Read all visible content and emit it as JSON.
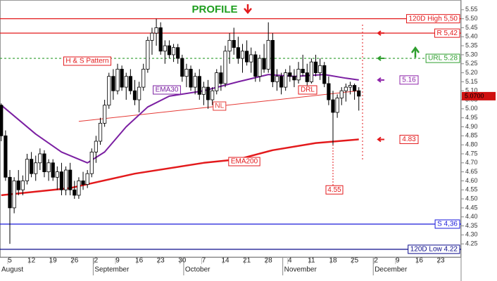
{
  "chart_data": {
    "type": "candlestick",
    "title": "PROFILE",
    "categories": [
      null,
      null,
      "5",
      null,
      null,
      null,
      null,
      "12",
      null,
      null,
      null,
      null,
      "19",
      null,
      null,
      null,
      null,
      "26",
      null,
      null,
      null,
      null,
      "2",
      null,
      null,
      null,
      null,
      "9",
      null,
      null,
      null,
      null,
      "16",
      null,
      null,
      null,
      null,
      "23",
      null,
      null,
      null,
      null,
      "30",
      null,
      null,
      null,
      null,
      "7",
      null,
      null,
      null,
      null,
      "14",
      null,
      null,
      null,
      null,
      "21",
      null,
      null,
      null,
      null,
      "28",
      null,
      null,
      null,
      null,
      "4",
      null,
      null,
      null,
      null,
      "11",
      null,
      null,
      null,
      null,
      "18",
      null,
      null,
      null,
      null,
      "25",
      null,
      null,
      null,
      null,
      "2",
      null,
      null,
      null,
      null,
      "9",
      null,
      null,
      null,
      null,
      "16",
      null,
      null,
      null,
      null,
      "23",
      null,
      null,
      null,
      null
    ],
    "months": [
      "August",
      null,
      null,
      null,
      null,
      null,
      null,
      null,
      null,
      null,
      null,
      null,
      null,
      null,
      null,
      null,
      null,
      null,
      null,
      null,
      null,
      null,
      "September",
      null,
      null,
      null,
      null,
      null,
      null,
      null,
      null,
      null,
      null,
      null,
      null,
      null,
      null,
      null,
      null,
      null,
      null,
      null,
      null,
      "October",
      null,
      null,
      null,
      null,
      null,
      null,
      null,
      null,
      null,
      null,
      null,
      null,
      null,
      null,
      null,
      null,
      null,
      null,
      null,
      null,
      null,
      null,
      "November",
      null,
      null,
      null,
      null,
      null,
      null,
      null,
      null,
      null,
      null,
      null,
      null,
      null,
      null,
      null,
      null,
      null,
      null,
      null,
      null,
      "December",
      null,
      null,
      null,
      null,
      null,
      null,
      null,
      null,
      null,
      null,
      null,
      null,
      null,
      null,
      null,
      null,
      null,
      null,
      null
    ],
    "open": [
      5.02,
      4.85,
      4.62,
      4.45,
      4.6,
      4.55,
      4.6,
      4.72,
      4.64,
      4.7,
      4.75,
      4.65,
      4.7,
      4.62,
      4.65,
      4.55,
      4.66,
      4.55,
      4.52,
      4.6,
      4.58,
      4.64,
      4.76,
      4.82,
      4.92,
      5.02,
      5.18,
      5.1,
      5.22,
      5.12,
      5.18,
      5.1,
      5.05,
      5.12,
      5.22,
      5.38,
      5.42,
      5.45,
      5.32,
      5.35,
      5.3,
      5.34,
      5.28,
      5.18,
      5.22,
      5.12,
      5.18,
      5.08,
      5.12,
      5.05,
      5.1,
      5.2,
      5.14,
      5.32,
      5.38,
      5.34,
      5.28,
      5.32,
      5.26,
      5.3,
      5.18,
      5.28,
      5.22,
      5.38,
      5.15,
      5.18,
      5.12,
      5.2,
      5.18,
      5.16,
      5.22,
      5.2,
      5.15,
      5.26,
      5.2,
      5.24,
      5.14,
      5.05,
      4.98,
      5.06,
      5.1,
      5.12,
      5.13,
      5.1,
      null,
      null,
      null,
      null,
      null,
      null,
      null,
      null,
      null,
      null,
      null,
      null,
      null,
      null,
      null,
      null,
      null,
      null,
      null,
      null,
      null,
      null,
      null
    ],
    "high": [
      5.03,
      4.88,
      4.66,
      4.62,
      4.66,
      4.63,
      4.75,
      4.76,
      4.74,
      4.78,
      4.77,
      4.72,
      4.72,
      4.68,
      4.7,
      4.68,
      4.7,
      4.6,
      4.62,
      4.65,
      4.66,
      4.78,
      4.85,
      4.95,
      5.05,
      5.2,
      5.22,
      5.25,
      5.24,
      5.2,
      5.22,
      5.16,
      5.15,
      5.25,
      5.4,
      5.45,
      5.5,
      5.48,
      5.38,
      5.38,
      5.36,
      5.36,
      5.3,
      5.25,
      5.24,
      5.2,
      5.22,
      5.15,
      5.16,
      5.12,
      5.22,
      5.24,
      5.35,
      5.42,
      5.45,
      5.4,
      5.36,
      5.38,
      5.34,
      5.32,
      5.3,
      5.36,
      5.48,
      5.42,
      5.22,
      5.2,
      5.22,
      5.24,
      5.22,
      5.26,
      5.3,
      5.25,
      5.28,
      5.3,
      5.28,
      5.26,
      5.18,
      5.1,
      5.08,
      5.12,
      5.14,
      5.15,
      5.14,
      5.12,
      null,
      null,
      null,
      null,
      null,
      null,
      null,
      null,
      null,
      null,
      null,
      null,
      null,
      null,
      null,
      null,
      null,
      null,
      null,
      null,
      null,
      null,
      null
    ],
    "low": [
      4.82,
      4.6,
      4.25,
      4.42,
      4.52,
      4.52,
      4.58,
      4.62,
      4.6,
      4.66,
      4.62,
      4.6,
      4.6,
      4.55,
      4.52,
      4.52,
      4.52,
      4.5,
      4.5,
      4.55,
      4.56,
      4.62,
      4.7,
      4.8,
      4.9,
      5.0,
      5.05,
      5.08,
      5.1,
      5.05,
      5.08,
      5.02,
      4.98,
      5.1,
      5.2,
      5.3,
      5.35,
      5.3,
      5.25,
      5.28,
      5.26,
      5.25,
      5.15,
      5.12,
      5.1,
      5.08,
      5.05,
      5.02,
      5.0,
      5.02,
      5.08,
      5.1,
      5.12,
      5.25,
      5.3,
      5.25,
      5.2,
      5.24,
      5.2,
      5.15,
      5.15,
      5.2,
      5.2,
      5.12,
      5.1,
      5.08,
      5.1,
      5.15,
      5.12,
      5.14,
      5.18,
      5.12,
      5.14,
      5.18,
      5.16,
      5.12,
      5.02,
      4.8,
      4.95,
      5.02,
      5.04,
      5.08,
      5.05,
      4.99,
      null,
      null,
      null,
      null,
      null,
      null,
      null,
      null,
      null,
      null,
      null,
      null,
      null,
      null,
      null,
      null,
      null,
      null,
      null,
      null,
      null,
      null,
      null
    ],
    "close": [
      4.85,
      4.62,
      4.45,
      4.6,
      4.55,
      4.6,
      4.72,
      4.64,
      4.7,
      4.75,
      4.65,
      4.7,
      4.62,
      4.65,
      4.55,
      4.66,
      4.55,
      4.52,
      4.6,
      4.58,
      4.64,
      4.76,
      4.82,
      4.92,
      5.02,
      5.18,
      5.1,
      5.22,
      5.12,
      5.18,
      5.1,
      5.05,
      5.12,
      5.22,
      5.38,
      5.42,
      5.45,
      5.32,
      5.35,
      5.3,
      5.34,
      5.28,
      5.18,
      5.22,
      5.12,
      5.18,
      5.08,
      5.12,
      5.05,
      5.1,
      5.2,
      5.14,
      5.32,
      5.38,
      5.34,
      5.28,
      5.32,
      5.26,
      5.3,
      5.18,
      5.28,
      5.22,
      5.38,
      5.15,
      5.18,
      5.12,
      5.2,
      5.18,
      5.16,
      5.22,
      5.2,
      5.15,
      5.26,
      5.2,
      5.24,
      5.14,
      5.05,
      4.98,
      5.06,
      5.1,
      5.12,
      5.13,
      5.1,
      5.07,
      null,
      null,
      null,
      null,
      null,
      null,
      null,
      null,
      null,
      null,
      null,
      null,
      null,
      null,
      null,
      null,
      null,
      null,
      null,
      null,
      null,
      null,
      null
    ],
    "series": [
      {
        "name": "EMA30",
        "color": "#7b1fa2",
        "x": [
          0,
          8,
          14,
          20,
          24,
          29,
          34,
          39,
          47,
          55,
          62,
          68,
          75,
          80,
          83
        ],
        "values": [
          5.02,
          4.86,
          4.76,
          4.7,
          4.76,
          4.9,
          5.01,
          5.07,
          5.1,
          5.15,
          5.19,
          5.18,
          5.19,
          5.17,
          5.16
        ]
      },
      {
        "name": "EMA200",
        "color": "#e31a1c",
        "x": [
          0,
          16,
          31,
          47,
          55,
          63,
          73,
          83
        ],
        "values": [
          4.52,
          4.56,
          4.64,
          4.7,
          4.72,
          4.77,
          4.81,
          4.83
        ]
      }
    ],
    "trendlines": [
      {
        "name": "NL",
        "color": "#e53935",
        "x": [
          18,
          83
        ],
        "values": [
          4.93,
          5.1
        ]
      }
    ],
    "levels": [
      {
        "value": 5.5,
        "label": "120D High 5,50",
        "color": "#e31a1c",
        "dash": false
      },
      {
        "value": 5.42,
        "label": "R 5,42",
        "color": "#e31a1c",
        "dash": false
      },
      {
        "value": 5.28,
        "label": "URL 5.28",
        "color": "#2e9e2e",
        "dash": true
      },
      {
        "value": 4.36,
        "label": "S 4,36",
        "color": "#1a1adb",
        "dash": false
      },
      {
        "value": 4.22,
        "label": "120D Low 4.22",
        "color": "#0c0c8c",
        "dash": false
      }
    ],
    "arrows": [
      {
        "value": 5.42,
        "color": "#e31a1c"
      },
      {
        "value": 5.28,
        "color": "#2e9e2e"
      }
    ],
    "price_labels": [
      {
        "value": 5.16,
        "color": "#8e24aa"
      },
      {
        "value": 4.83,
        "color": "#e31a1c"
      }
    ],
    "target": {
      "value": 4.55,
      "color": "#e31a1c"
    },
    "last_price": {
      "value": 5.07,
      "label": "5.0700"
    },
    "annotations": [
      "H & S Pattern",
      "DRL"
    ],
    "ylim": [
      4.2,
      5.6
    ],
    "yticks": [
      4.25,
      {
        "value": 4.3,
        "label": "4.30"
      },
      4.35,
      {
        "value": 4.4,
        "label": "4.40"
      },
      4.45,
      {
        "value": 4.5,
        "label": "4.50"
      },
      4.55,
      {
        "value": 4.6,
        "label": "4.60"
      },
      4.65,
      {
        "value": 4.7,
        "label": "4.70"
      },
      4.75,
      {
        "value": 4.8,
        "label": "4.80"
      },
      4.85,
      {
        "value": 4.9,
        "label": "4.90"
      },
      4.95,
      {
        "value": 5.0,
        "label": "5.00"
      },
      5.05,
      {
        "value": 5.1,
        "label": "5.10"
      },
      5.15,
      {
        "value": 5.2,
        "label": "5.20"
      },
      5.25,
      {
        "value": 5.3,
        "label": "5.30"
      },
      5.35,
      {
        "value": 5.4,
        "label": "5.40"
      },
      5.45,
      {
        "value": 5.5,
        "label": "5.50"
      },
      5.55
    ]
  }
}
